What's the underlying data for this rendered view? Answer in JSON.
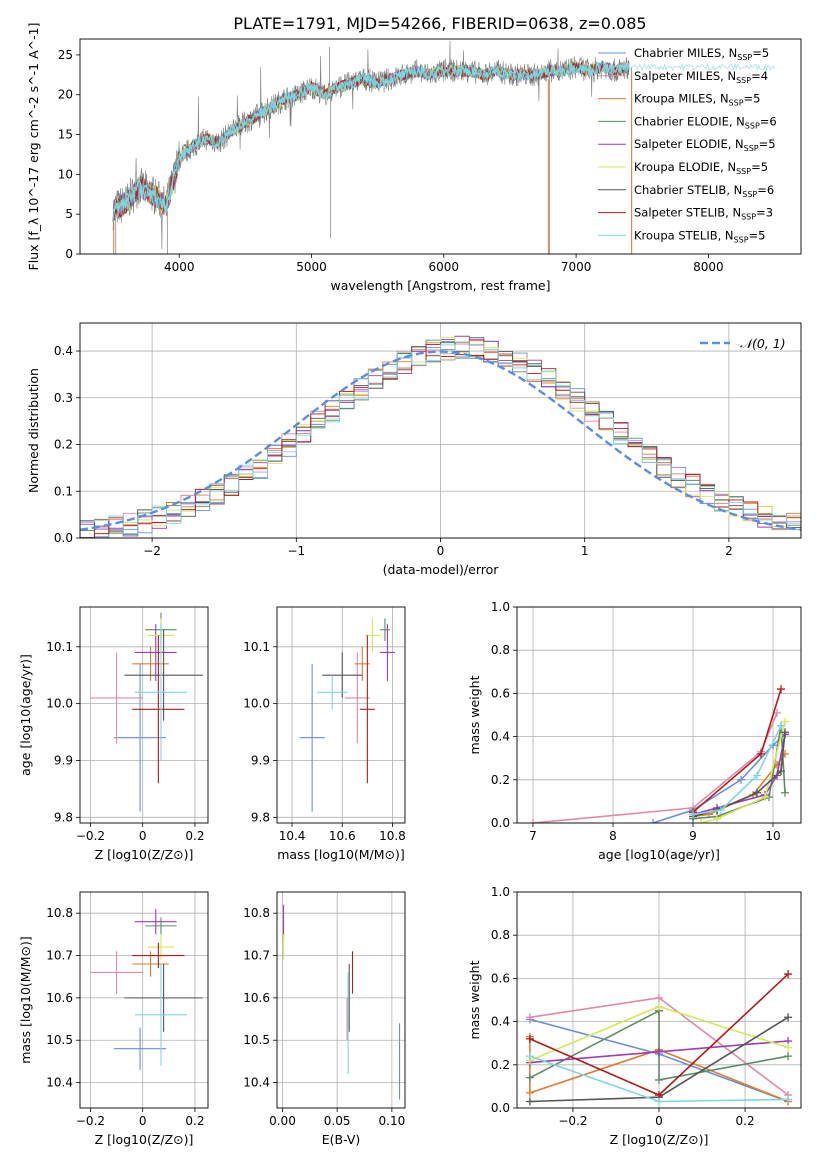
{
  "suptitle": "PLATE=1791, MJD=54266, FIBERID=0638, z=0.085",
  "legend_entries": [
    {
      "label": "Chabrier MILES, N_SSP=5",
      "color": "#6a8fd8"
    },
    {
      "label": "Salpeter MILES, N_SSP=4",
      "color": "#e08aa7"
    },
    {
      "label": "Kroupa MILES, N_SSP=5",
      "color": "#e07b2e"
    },
    {
      "label": "Chabrier ELODIE, N_SSP=6",
      "color": "#5e8a6a"
    },
    {
      "label": "Salpeter ELODIE, N_SSP=5",
      "color": "#9b3fb3"
    },
    {
      "label": "Kroupa ELODIE, N_SSP=5",
      "color": "#d4e85a"
    },
    {
      "label": "Chabrier STELIB, N_SSP=6",
      "color": "#555555"
    },
    {
      "label": "Salpeter STELIB, N_SSP=3",
      "color": "#b01c1c"
    },
    {
      "label": "Kroupa STELIB, N_SSP=5",
      "color": "#7fd6e0"
    }
  ],
  "chart_data": [
    {
      "id": "spectrum",
      "type": "line",
      "title": "PLATE=1791, MJD=54266, FIBERID=0638, z=0.085",
      "xlabel": "wavelength [Angstrom, rest frame]",
      "ylabel": "Flux [f_λ 10^-17 erg cm^-2 s^-1 A^-1]",
      "xlim": [
        3250,
        8700
      ],
      "ylim": [
        0,
        27
      ],
      "xticks": [
        4000,
        5000,
        6000,
        7000,
        8000
      ],
      "yticks": [
        0,
        5,
        10,
        15,
        20,
        25
      ],
      "legend": "top-right",
      "grid": false,
      "x": [
        3500,
        3600,
        3700,
        3800,
        3900,
        4000,
        4100,
        4200,
        4300,
        4400,
        4500,
        4600,
        4700,
        4800,
        4900,
        5000,
        5100,
        5200,
        5300,
        5400,
        5500,
        5600,
        5700,
        5800,
        5900,
        6000,
        6100,
        6200,
        6300,
        6400,
        6500,
        6600,
        6700,
        6800,
        6900,
        7000,
        7100,
        7200,
        7300,
        7400
      ],
      "y": [
        5.5,
        6.5,
        8.5,
        7.5,
        6.0,
        12.0,
        13.5,
        14.5,
        14.0,
        15.5,
        16.5,
        17.5,
        18.5,
        19.5,
        20.0,
        21.0,
        20.0,
        21.0,
        21.5,
        22.0,
        21.5,
        22.0,
        22.5,
        23.0,
        22.5,
        23.0,
        23.0,
        23.0,
        22.5,
        23.0,
        22.5,
        22.5,
        22.5,
        23.0,
        23.0,
        23.5,
        23.0,
        23.5,
        23.0,
        23.5
      ],
      "model_x": [
        3500,
        4000,
        4500,
        5000,
        5500,
        6000,
        6500,
        7000,
        7500,
        8000,
        8500
      ],
      "model_y": [
        6.0,
        12.5,
        16.5,
        21.0,
        22.0,
        23.0,
        22.5,
        23.5,
        23.5,
        23.5,
        23.5
      ]
    },
    {
      "id": "residuals",
      "type": "line",
      "xlabel": "(data-model)/error",
      "ylabel": "Normed distribution",
      "xlim": [
        -2.5,
        2.5
      ],
      "ylim": [
        0,
        0.46
      ],
      "xticks": [
        -2,
        -1,
        0,
        1,
        2
      ],
      "yticks": [
        0.0,
        0.1,
        0.2,
        0.3,
        0.4
      ],
      "grid": true,
      "legend": "top-right",
      "legend_label": "𝒩(0, 1)",
      "bin_width": 0.1
    },
    {
      "id": "age-vs-Z",
      "type": "scatter",
      "xlabel": "Z [log10(Z/Z⊙)]",
      "ylabel": "age [log10(age/yr)]",
      "xlim": [
        -0.24,
        0.25
      ],
      "ylim": [
        9.79,
        10.17
      ],
      "xticks": [
        -0.2,
        0.0,
        0.2
      ],
      "yticks": [
        9.8,
        9.9,
        10.0,
        10.1
      ],
      "grid": true,
      "points": [
        {
          "x": -0.01,
          "y": 9.94,
          "xerr": 0.1,
          "yerr": 0.13,
          "color": "#6a8fd8"
        },
        {
          "x": -0.1,
          "y": 10.01,
          "xerr": 0.1,
          "yerr": 0.08,
          "color": "#e08aa7"
        },
        {
          "x": 0.03,
          "y": 10.07,
          "xerr": 0.07,
          "yerr": 0.03,
          "color": "#e07b2e"
        },
        {
          "x": 0.07,
          "y": 10.13,
          "xerr": 0.06,
          "yerr": 0.03,
          "color": "#5e8a6a"
        },
        {
          "x": 0.05,
          "y": 10.09,
          "xerr": 0.08,
          "yerr": 0.05,
          "color": "#9b3fb3"
        },
        {
          "x": 0.07,
          "y": 10.12,
          "xerr": 0.05,
          "yerr": 0.03,
          "color": "#d4e85a"
        },
        {
          "x": 0.08,
          "y": 10.05,
          "xerr": 0.15,
          "yerr": 0.08,
          "color": "#555555"
        },
        {
          "x": 0.06,
          "y": 9.99,
          "xerr": 0.1,
          "yerr": 0.13,
          "color": "#b01c1c"
        },
        {
          "x": 0.07,
          "y": 10.02,
          "xerr": 0.1,
          "yerr": 0.12,
          "color": "#7fd6e0"
        }
      ]
    },
    {
      "id": "age-vs-mass",
      "type": "scatter",
      "xlabel": "mass [log10(M/M⊙)]",
      "ylabel": "",
      "xlim": [
        10.34,
        10.85
      ],
      "ylim": [
        9.79,
        10.17
      ],
      "xticks": [
        10.4,
        10.6,
        10.8
      ],
      "yticks": [
        9.8,
        9.9,
        10.0,
        10.1
      ],
      "grid": true,
      "points": [
        {
          "x": 10.48,
          "y": 9.94,
          "xerr": 0.05,
          "yerr": 0.13,
          "color": "#6a8fd8"
        },
        {
          "x": 10.66,
          "y": 10.01,
          "xerr": 0.05,
          "yerr": 0.08,
          "color": "#e08aa7"
        },
        {
          "x": 10.68,
          "y": 10.07,
          "xerr": 0.03,
          "yerr": 0.03,
          "color": "#e07b2e"
        },
        {
          "x": 10.77,
          "y": 10.13,
          "xerr": 0.02,
          "yerr": 0.02,
          "color": "#5e8a6a"
        },
        {
          "x": 10.78,
          "y": 10.09,
          "xerr": 0.03,
          "yerr": 0.05,
          "color": "#9b3fb3"
        },
        {
          "x": 10.72,
          "y": 10.12,
          "xerr": 0.03,
          "yerr": 0.03,
          "color": "#d4e85a"
        },
        {
          "x": 10.6,
          "y": 10.05,
          "xerr": 0.08,
          "yerr": 0.04,
          "color": "#555555"
        },
        {
          "x": 10.7,
          "y": 9.99,
          "xerr": 0.03,
          "yerr": 0.13,
          "color": "#b01c1c"
        },
        {
          "x": 10.56,
          "y": 10.02,
          "xerr": 0.06,
          "yerr": 0.03,
          "color": "#7fd6e0"
        }
      ]
    },
    {
      "id": "massweight-vs-age",
      "type": "line",
      "xlabel": "age [log10(age/yr)]",
      "ylabel": "mass weight",
      "xlim": [
        6.8,
        10.35
      ],
      "ylim": [
        0,
        1.0
      ],
      "xticks": [
        7,
        8,
        9,
        10
      ],
      "yticks": [
        0.0,
        0.2,
        0.4,
        0.6,
        0.8,
        1.0
      ],
      "grid": true,
      "series": [
        {
          "color": "#6a8fd8",
          "x": [
            8.5,
            9.0,
            9.6,
            10.0,
            10.15
          ],
          "y": [
            0.0,
            0.06,
            0.2,
            0.36,
            0.41
          ]
        },
        {
          "color": "#e08aa7",
          "x": [
            7.0,
            9.0,
            9.85,
            10.05
          ],
          "y": [
            0.0,
            0.07,
            0.33,
            0.51
          ]
        },
        {
          "color": "#e07b2e",
          "x": [
            9.0,
            9.2,
            9.75,
            10.05,
            10.15
          ],
          "y": [
            0.03,
            0.04,
            0.13,
            0.27,
            0.32
          ]
        },
        {
          "color": "#5e8a6a",
          "x": [
            9.0,
            9.3,
            9.95,
            10.1,
            10.15
          ],
          "y": [
            0.02,
            0.03,
            0.12,
            0.45,
            0.14
          ]
        },
        {
          "color": "#9b3fb3",
          "x": [
            9.0,
            9.3,
            9.9,
            10.05,
            10.15
          ],
          "y": [
            0.04,
            0.07,
            0.13,
            0.22,
            0.41
          ]
        },
        {
          "color": "#d4e85a",
          "x": [
            9.1,
            9.3,
            9.9,
            10.15
          ],
          "y": [
            0.0,
            0.02,
            0.12,
            0.47
          ]
        },
        {
          "color": "#555555",
          "x": [
            9.0,
            9.3,
            9.8,
            10.1,
            10.15
          ],
          "y": [
            0.03,
            0.06,
            0.14,
            0.24,
            0.42
          ]
        },
        {
          "color": "#b01c1c",
          "x": [
            9.0,
            9.85,
            10.1
          ],
          "y": [
            0.05,
            0.32,
            0.62
          ]
        },
        {
          "color": "#7fd6e0",
          "x": [
            9.0,
            9.35,
            9.8,
            10.1
          ],
          "y": [
            0.04,
            0.06,
            0.22,
            0.45
          ]
        }
      ]
    },
    {
      "id": "mass-vs-Z",
      "type": "scatter",
      "xlabel": "Z [log10(Z/Z⊙)]",
      "ylabel": "mass [log10(M/M⊙)]",
      "xlim": [
        -0.24,
        0.25
      ],
      "ylim": [
        10.34,
        10.85
      ],
      "xticks": [
        -0.2,
        0.0,
        0.2
      ],
      "yticks": [
        10.4,
        10.5,
        10.6,
        10.7,
        10.8
      ],
      "grid": true,
      "points": [
        {
          "x": -0.01,
          "y": 10.48,
          "xerr": 0.1,
          "yerr": 0.05,
          "color": "#6a8fd8"
        },
        {
          "x": -0.1,
          "y": 10.66,
          "xerr": 0.1,
          "yerr": 0.05,
          "color": "#e08aa7"
        },
        {
          "x": 0.03,
          "y": 10.68,
          "xerr": 0.07,
          "yerr": 0.03,
          "color": "#e07b2e"
        },
        {
          "x": 0.07,
          "y": 10.77,
          "xerr": 0.06,
          "yerr": 0.02,
          "color": "#5e8a6a"
        },
        {
          "x": 0.05,
          "y": 10.78,
          "xerr": 0.08,
          "yerr": 0.03,
          "color": "#9b3fb3"
        },
        {
          "x": 0.07,
          "y": 10.72,
          "xerr": 0.05,
          "yerr": 0.03,
          "color": "#d4e85a"
        },
        {
          "x": 0.08,
          "y": 10.6,
          "xerr": 0.15,
          "yerr": 0.08,
          "color": "#555555"
        },
        {
          "x": 0.06,
          "y": 10.7,
          "xerr": 0.1,
          "yerr": 0.03,
          "color": "#b01c1c"
        },
        {
          "x": 0.07,
          "y": 10.56,
          "xerr": 0.1,
          "yerr": 0.12,
          "color": "#7fd6e0"
        }
      ]
    },
    {
      "id": "mass-vs-EBV",
      "type": "scatter",
      "xlabel": "E(B-V)",
      "ylabel": "",
      "xlim": [
        -0.005,
        0.112
      ],
      "ylim": [
        10.34,
        10.85
      ],
      "xticks": [
        0.0,
        0.05,
        0.1
      ],
      "xticklabels": [
        "0.00",
        "0.05",
        "0.10"
      ],
      "yticks": [
        10.4,
        10.5,
        10.6,
        10.7,
        10.8
      ],
      "grid": true,
      "points": [
        {
          "x": 0.107,
          "y": 10.45,
          "yerr": 0.09,
          "color": "#6a8fd8"
        },
        {
          "x": 0.059,
          "y": 10.55,
          "yerr": 0.05,
          "color": "#e08aa7"
        },
        {
          "x": 0.001,
          "y": 10.78,
          "yerr": 0.04,
          "color": "#9b3fb3"
        },
        {
          "x": 0.001,
          "y": 10.72,
          "yerr": 0.03,
          "color": "#d4e85a"
        },
        {
          "x": 0.061,
          "y": 10.6,
          "yerr": 0.08,
          "color": "#555555"
        },
        {
          "x": 0.064,
          "y": 10.66,
          "yerr": 0.05,
          "color": "#b01c1c"
        },
        {
          "x": 0.06,
          "y": 10.54,
          "yerr": 0.12,
          "color": "#7fd6e0"
        }
      ]
    },
    {
      "id": "massweight-vs-Z",
      "type": "line",
      "xlabel": "Z [log10(Z/Z⊙)]",
      "ylabel": "mass weight",
      "xlim": [
        -0.33,
        0.33
      ],
      "ylim": [
        0,
        1.0
      ],
      "xticks": [
        -0.2,
        0.0,
        0.2
      ],
      "yticks": [
        0.0,
        0.2,
        0.4,
        0.6,
        0.8,
        1.0
      ],
      "grid": true,
      "series": [
        {
          "color": "#6a8fd8",
          "x": [
            -0.3,
            0.0,
            0.3
          ],
          "y": [
            0.41,
            0.25,
            0.03
          ]
        },
        {
          "color": "#e08aa7",
          "x": [
            -0.3,
            0.0,
            0.3
          ],
          "y": [
            0.42,
            0.51,
            0.06
          ]
        },
        {
          "color": "#e07b2e",
          "x": [
            -0.3,
            -0.3,
            0.0,
            0.3
          ],
          "y": [
            0.33,
            0.07,
            0.27,
            0.03
          ]
        },
        {
          "color": "#5e8a6a",
          "x": [
            -0.3,
            0.0,
            0.0,
            0.3
          ],
          "y": [
            0.14,
            0.45,
            0.13,
            0.24
          ]
        },
        {
          "color": "#9b3fb3",
          "x": [
            -0.3,
            0.0,
            0.3
          ],
          "y": [
            0.21,
            0.26,
            0.31
          ]
        },
        {
          "color": "#d4e85a",
          "x": [
            -0.3,
            0.0,
            0.3
          ],
          "y": [
            0.22,
            0.47,
            0.28
          ]
        },
        {
          "color": "#555555",
          "x": [
            -0.3,
            0.0,
            0.3
          ],
          "y": [
            0.03,
            0.05,
            0.42
          ]
        },
        {
          "color": "#b01c1c",
          "x": [
            -0.3,
            0.0,
            0.3
          ],
          "y": [
            0.32,
            0.06,
            0.62
          ]
        },
        {
          "color": "#7fd6e0",
          "x": [
            -0.3,
            0.0,
            0.3
          ],
          "y": [
            0.24,
            0.03,
            0.04
          ]
        }
      ]
    }
  ]
}
